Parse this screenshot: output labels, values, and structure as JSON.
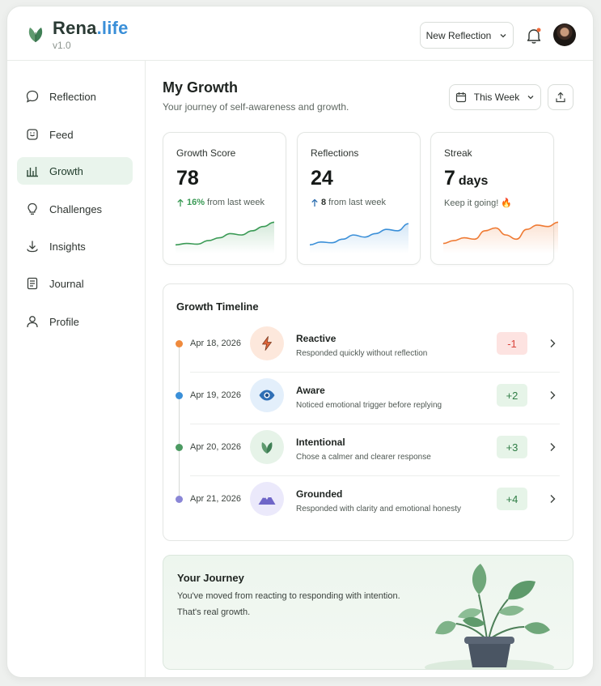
{
  "app": {
    "brand_main": "Rena",
    "brand_accent": ".life",
    "version": "v1.0",
    "new_reflection_label": "New Reflection"
  },
  "sidebar": {
    "items": [
      {
        "label": "Reflection",
        "icon": "chat-bubble-icon"
      },
      {
        "label": "Feed",
        "icon": "feed-icon"
      },
      {
        "label": "Growth",
        "icon": "bar-chart-icon",
        "active": true
      },
      {
        "label": "Challenges",
        "icon": "lightbulb-icon"
      },
      {
        "label": "Insights",
        "icon": "insights-icon"
      },
      {
        "label": "Journal",
        "icon": "journal-icon"
      },
      {
        "label": "Profile",
        "icon": "user-icon"
      }
    ]
  },
  "page": {
    "title": "My Growth",
    "subtitle": "Your journey of self-awareness and growth.",
    "period_label": "This Week"
  },
  "cards": [
    {
      "label": "Growth Score",
      "value": "78",
      "unit": "",
      "delta_value": "16%",
      "delta_text": "from last week",
      "color": "#3a9a55"
    },
    {
      "label": "Reflections",
      "value": "24",
      "unit": "",
      "delta_value": "8",
      "delta_text": "from last week",
      "color": "#3a8fd8"
    },
    {
      "label": "Streak",
      "value": "7",
      "unit": "days",
      "note": "Keep it going! 🔥",
      "color": "#ef7a33"
    }
  ],
  "timeline": {
    "title": "Growth Timeline",
    "entries": [
      {
        "date": "Apr 18, 2026",
        "name": "Reactive",
        "desc": "Responded quickly without reflection",
        "change": "-1",
        "icon": "lightning-icon",
        "dot": "#ef8a3c",
        "icon_bg": "#fde8dc",
        "badge_bg": "#fde3e1",
        "badge_color": "#d9453c"
      },
      {
        "date": "Apr 19, 2026",
        "name": "Aware",
        "desc": "Noticed emotional trigger before replying",
        "change": "+2",
        "icon": "eye-icon",
        "dot": "#3a8fd8",
        "icon_bg": "#e3effb",
        "badge_bg": "#e6f4e8",
        "badge_color": "#2f7d45"
      },
      {
        "date": "Apr 20, 2026",
        "name": "Intentional",
        "desc": "Chose a calmer and clearer response",
        "change": "+3",
        "icon": "leaf-icon",
        "dot": "#4c9a62",
        "icon_bg": "#e6f3e8",
        "badge_bg": "#e6f4e8",
        "badge_color": "#2f7d45"
      },
      {
        "date": "Apr 21, 2026",
        "name": "Grounded",
        "desc": "Responded with clarity and emotional honesty",
        "change": "+4",
        "icon": "mountain-icon",
        "dot": "#8a86d6",
        "icon_bg": "#ebe9fb",
        "badge_bg": "#e6f4e8",
        "badge_color": "#2f7d45"
      }
    ]
  },
  "journey": {
    "title": "Your Journey",
    "line1": "You've moved from reacting to responding with intention.",
    "line2": "That's real growth."
  },
  "chart_data": [
    {
      "type": "line",
      "values": [
        10,
        12,
        11,
        16,
        20,
        26,
        24,
        30,
        36,
        42
      ],
      "color": "#3a9a55"
    },
    {
      "type": "line",
      "values": [
        10,
        14,
        13,
        18,
        24,
        21,
        26,
        32,
        30,
        40
      ],
      "color": "#3a8fd8"
    },
    {
      "type": "line",
      "values": [
        12,
        16,
        20,
        18,
        30,
        34,
        24,
        18,
        32,
        38,
        36,
        42
      ],
      "color": "#ef7a33"
    }
  ]
}
